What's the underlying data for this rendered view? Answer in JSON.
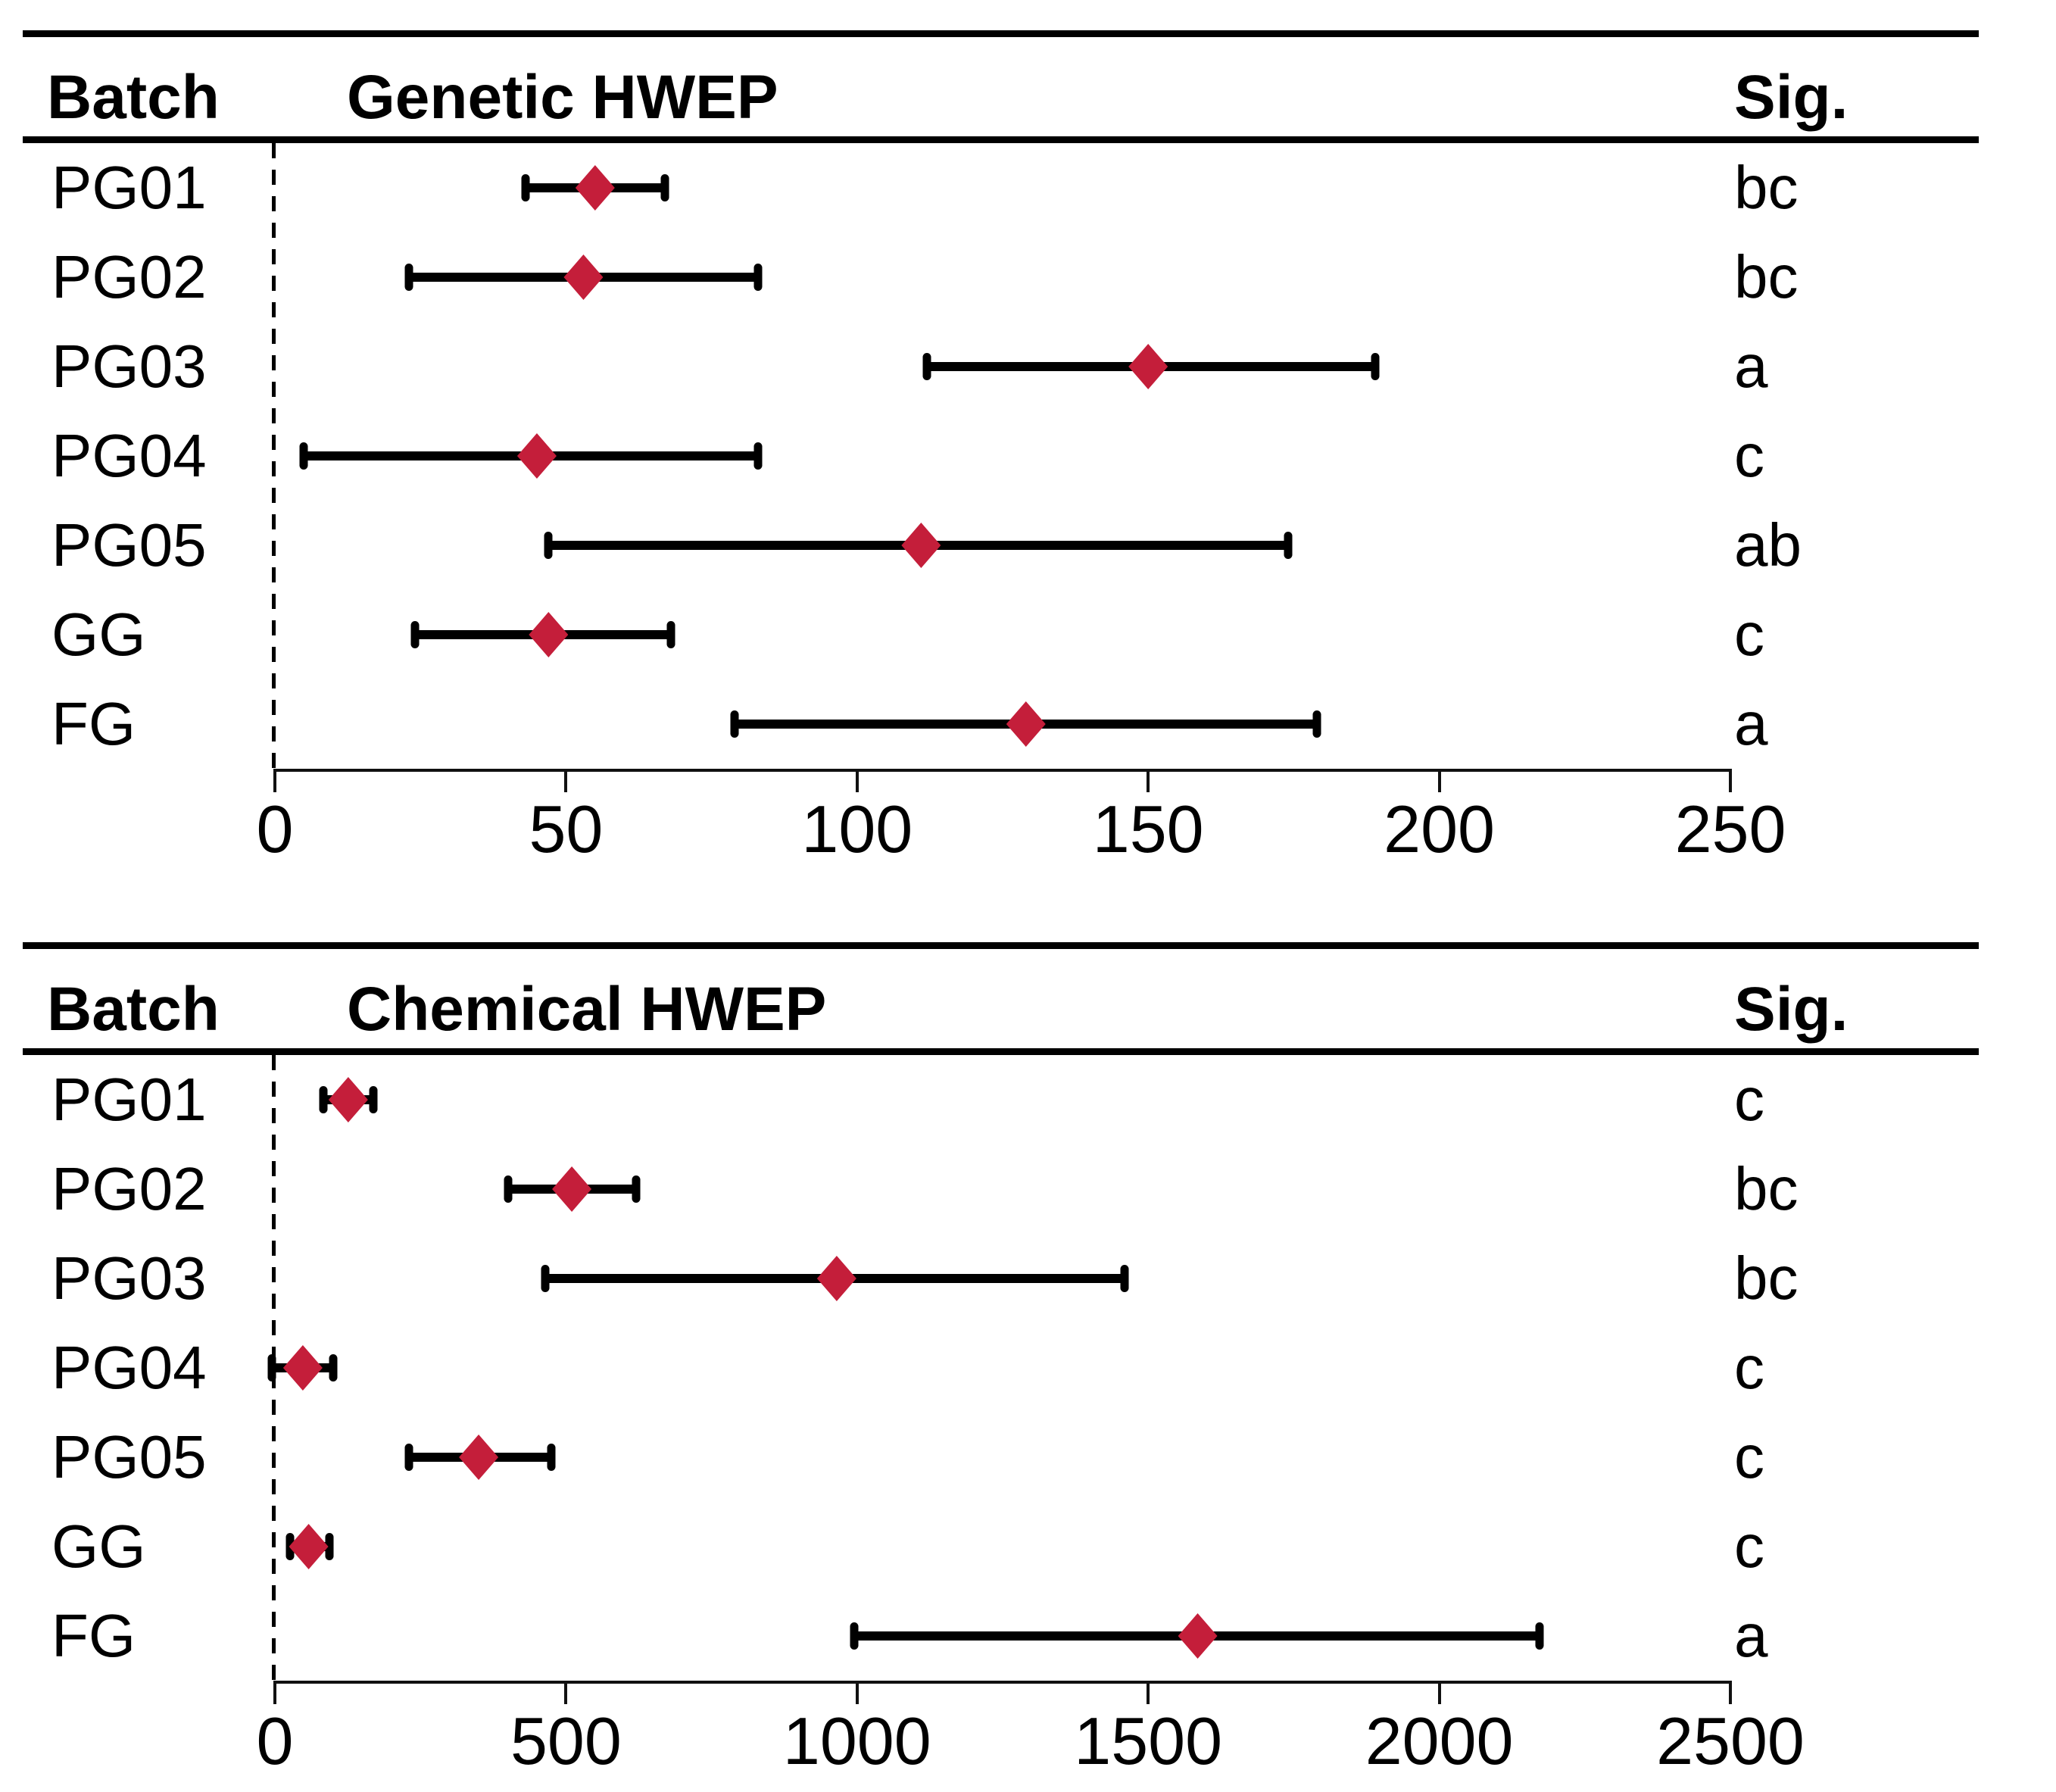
{
  "style": {
    "marker_color": "#C41E3A",
    "line_color": "#000000",
    "background": "#ffffff"
  },
  "chart_data": [
    {
      "type": "scatter",
      "subtype": "forest-interval",
      "batch_header": "Batch",
      "title": "Genetic HWEP",
      "sig_header": "Sig.",
      "xlabel": "",
      "ylabel": "",
      "grid": false,
      "legend": "none",
      "axis": {
        "min": 0,
        "max": 250,
        "ticks": [
          0,
          50,
          100,
          150,
          200,
          250
        ]
      },
      "categories": [
        "PG01",
        "PG02",
        "PG03",
        "PG04",
        "PG05",
        "GG",
        "FG"
      ],
      "series": [
        {
          "name": "mean",
          "values": [
            55,
            53,
            150,
            45,
            111,
            47,
            129
          ]
        },
        {
          "name": "ci_low",
          "values": [
            43,
            23,
            112,
            5,
            47,
            24,
            79
          ]
        },
        {
          "name": "ci_high",
          "values": [
            67,
            83,
            189,
            83,
            174,
            68,
            179
          ]
        }
      ],
      "rows": [
        {
          "batch": "PG01",
          "mean": 55,
          "lo": 43,
          "hi": 67,
          "sig": "bc"
        },
        {
          "batch": "PG02",
          "mean": 53,
          "lo": 23,
          "hi": 83,
          "sig": "bc"
        },
        {
          "batch": "PG03",
          "mean": 150,
          "lo": 112,
          "hi": 189,
          "sig": "a"
        },
        {
          "batch": "PG04",
          "mean": 45,
          "lo": 5,
          "hi": 83,
          "sig": "c"
        },
        {
          "batch": "PG05",
          "mean": 111,
          "lo": 47,
          "hi": 174,
          "sig": "ab"
        },
        {
          "batch": "GG",
          "mean": 47,
          "lo": 24,
          "hi": 68,
          "sig": "c"
        },
        {
          "batch": "FG",
          "mean": 129,
          "lo": 79,
          "hi": 179,
          "sig": "a"
        }
      ]
    },
    {
      "type": "scatter",
      "subtype": "forest-interval",
      "batch_header": "Batch",
      "title": "Chemical HWEP",
      "sig_header": "Sig.",
      "xlabel": "",
      "ylabel": "",
      "grid": false,
      "legend": "none",
      "axis": {
        "min": 0,
        "max": 2500,
        "ticks": [
          0,
          500,
          1000,
          1500,
          2000,
          2500
        ]
      },
      "categories": [
        "PG01",
        "PG02",
        "PG03",
        "PG04",
        "PG05",
        "GG",
        "FG"
      ],
      "series": [
        {
          "name": "mean",
          "values": [
            126,
            510,
            965,
            48,
            350,
            58,
            1585
          ]
        },
        {
          "name": "ci_low",
          "values": [
            83,
            400,
            465,
            -5,
            230,
            26,
            995
          ]
        },
        {
          "name": "ci_high",
          "values": [
            169,
            620,
            1460,
            100,
            475,
            94,
            2172
          ]
        }
      ],
      "rows": [
        {
          "batch": "PG01",
          "mean": 126,
          "lo": 83,
          "hi": 169,
          "sig": "c"
        },
        {
          "batch": "PG02",
          "mean": 510,
          "lo": 400,
          "hi": 620,
          "sig": "bc"
        },
        {
          "batch": "PG03",
          "mean": 965,
          "lo": 465,
          "hi": 1460,
          "sig": "bc"
        },
        {
          "batch": "PG04",
          "mean": 48,
          "lo": -5,
          "hi": 100,
          "sig": "c"
        },
        {
          "batch": "PG05",
          "mean": 350,
          "lo": 230,
          "hi": 475,
          "sig": "c"
        },
        {
          "batch": "GG",
          "mean": 58,
          "lo": 26,
          "hi": 94,
          "sig": "c"
        },
        {
          "batch": "FG",
          "mean": 1585,
          "lo": 995,
          "hi": 2172,
          "sig": "a"
        }
      ]
    }
  ]
}
